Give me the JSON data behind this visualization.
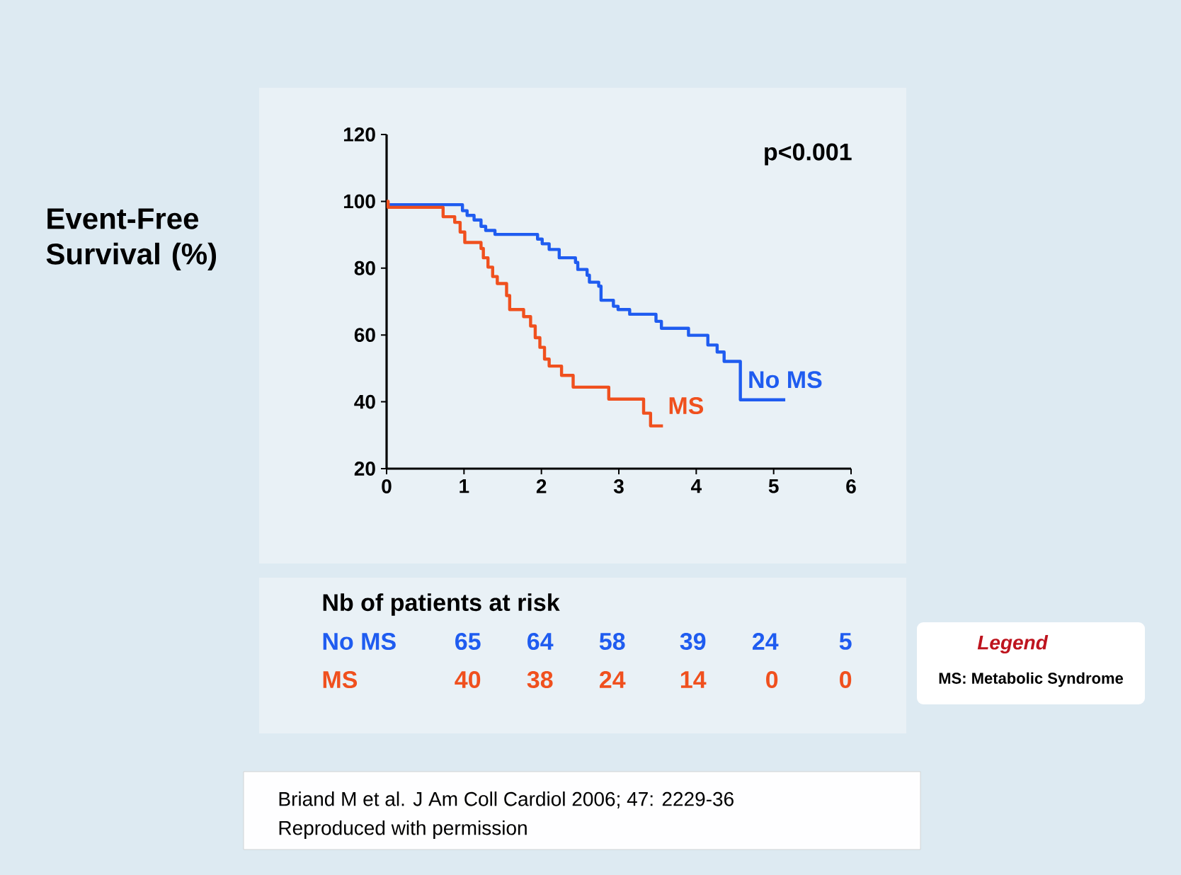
{
  "chart_data": {
    "type": "step",
    "ylabel": "Event-Free Survival (%)",
    "xlim": [
      0,
      6
    ],
    "ylim": [
      20,
      120
    ],
    "xticks": [
      0,
      1,
      2,
      3,
      4,
      5,
      6
    ],
    "yticks": [
      20,
      40,
      60,
      80,
      100,
      120
    ],
    "series": [
      {
        "name": "No MS",
        "color": "#1f5cf0",
        "x": [
          0,
          0.98,
          1.04,
          1.13,
          1.22,
          1.28,
          1.4,
          1.95,
          2.01,
          2.1,
          2.23,
          2.44,
          2.47,
          2.59,
          2.62,
          2.74,
          2.77,
          2.93,
          2.99,
          3.14,
          3.48,
          3.55,
          3.9,
          4.15,
          4.27,
          4.36,
          4.57,
          5.15
        ],
        "values": [
          99,
          97.2,
          95.8,
          94.4,
          92.5,
          91.3,
          90.1,
          88.7,
          87.3,
          85.6,
          83.1,
          81.7,
          79.6,
          77.9,
          75.8,
          74.6,
          70.4,
          68.6,
          67.6,
          66.2,
          64.1,
          62.0,
          59.9,
          57.0,
          54.9,
          52.1,
          40.6,
          40.6
        ]
      },
      {
        "name": "MS",
        "color": "#f0501e",
        "x": [
          0,
          0.02,
          0.73,
          0.88,
          0.95,
          1.01,
          1.22,
          1.25,
          1.31,
          1.37,
          1.43,
          1.55,
          1.59,
          1.77,
          1.86,
          1.92,
          1.98,
          2.04,
          2.1,
          2.26,
          2.41,
          2.87,
          3.32,
          3.41,
          3.57
        ],
        "values": [
          100,
          98.2,
          95.4,
          93.7,
          90.8,
          87.7,
          85.9,
          83.1,
          80.3,
          77.5,
          75.4,
          71.8,
          67.6,
          65.5,
          62.7,
          59.2,
          56.3,
          52.8,
          50.7,
          47.9,
          44.4,
          40.8,
          36.6,
          32.8,
          32.8
        ]
      }
    ],
    "annotations": [
      "p<0.001",
      "Nb of patients at risk",
      "65",
      "64",
      "58",
      "39",
      "24",
      "5",
      "40",
      "38",
      "24",
      "14",
      "0",
      "0",
      "Legend",
      "MS: Metabolic Syndrome",
      "Briand M et al. J Am Coll Cardiol 2006; 47: 2229-36",
      "Reproduced with permission"
    ]
  }
}
